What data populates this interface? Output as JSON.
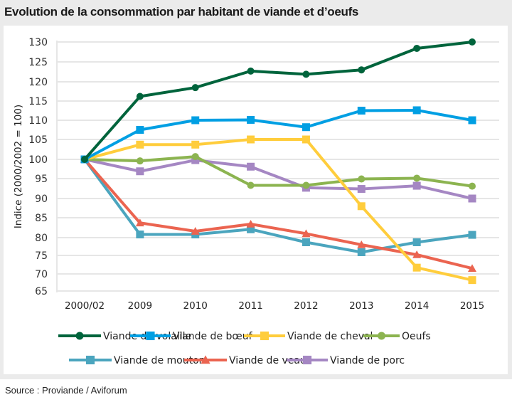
{
  "title": "Evolution de la consommation par habitant de viande et d’oeufs",
  "source": "Source : Proviande / Aviforum",
  "chart_data": {
    "type": "line",
    "title": "Evolution de la consommation par habitant de viande et d’oeufs",
    "xlabel": "",
    "ylabel": "Indice (2000/2002 = 100)",
    "x": [
      "2000/02",
      "2009",
      "2010",
      "2011",
      "2012",
      "2013",
      "2014",
      "2015"
    ],
    "yticks": [
      130,
      125,
      120,
      115,
      110,
      105,
      100,
      95,
      90,
      85,
      80,
      75,
      70,
      65
    ],
    "ylim": [
      65,
      130
    ],
    "grid": true,
    "legend_placement": "bottom",
    "series": [
      {
        "name": "Viande de volaille",
        "color": "#00643c",
        "marker": "circle",
        "values": [
          100,
          116.2,
          118.5,
          122.7,
          121.9,
          123.0,
          128.4,
          130.0
        ]
      },
      {
        "name": "Viande de bœuf",
        "color": "#009fe3",
        "marker": "square",
        "values": [
          100,
          107.5,
          110.0,
          110.1,
          108.2,
          112.5,
          112.6,
          110.0
        ]
      },
      {
        "name": "Viande de cheval",
        "color": "#ffcd3c",
        "marker": "square",
        "values": [
          100,
          103.7,
          103.7,
          105.0,
          105.0,
          88.0,
          71.7,
          68.2
        ]
      },
      {
        "name": "Oeufs",
        "color": "#8cb450",
        "marker": "circle",
        "values": [
          100,
          99.6,
          100.7,
          93.3,
          93.3,
          94.9,
          95.1,
          93.1
        ]
      },
      {
        "name": "Viande de mouton",
        "color": "#4ba5be",
        "marker": "square",
        "values": [
          100,
          80.8,
          80.8,
          82.1,
          78.7,
          75.9,
          78.7,
          80.7
        ]
      },
      {
        "name": "Viande de veau",
        "color": "#eb6450",
        "marker": "triangle",
        "values": [
          100,
          83.7,
          81.6,
          83.4,
          81.0,
          78.0,
          75.2,
          71.5
        ]
      },
      {
        "name": "Viande de porc",
        "color": "#a587c3",
        "marker": "square",
        "values": [
          100,
          96.9,
          99.8,
          98.1,
          92.7,
          92.4,
          93.2,
          90.0
        ]
      }
    ]
  }
}
